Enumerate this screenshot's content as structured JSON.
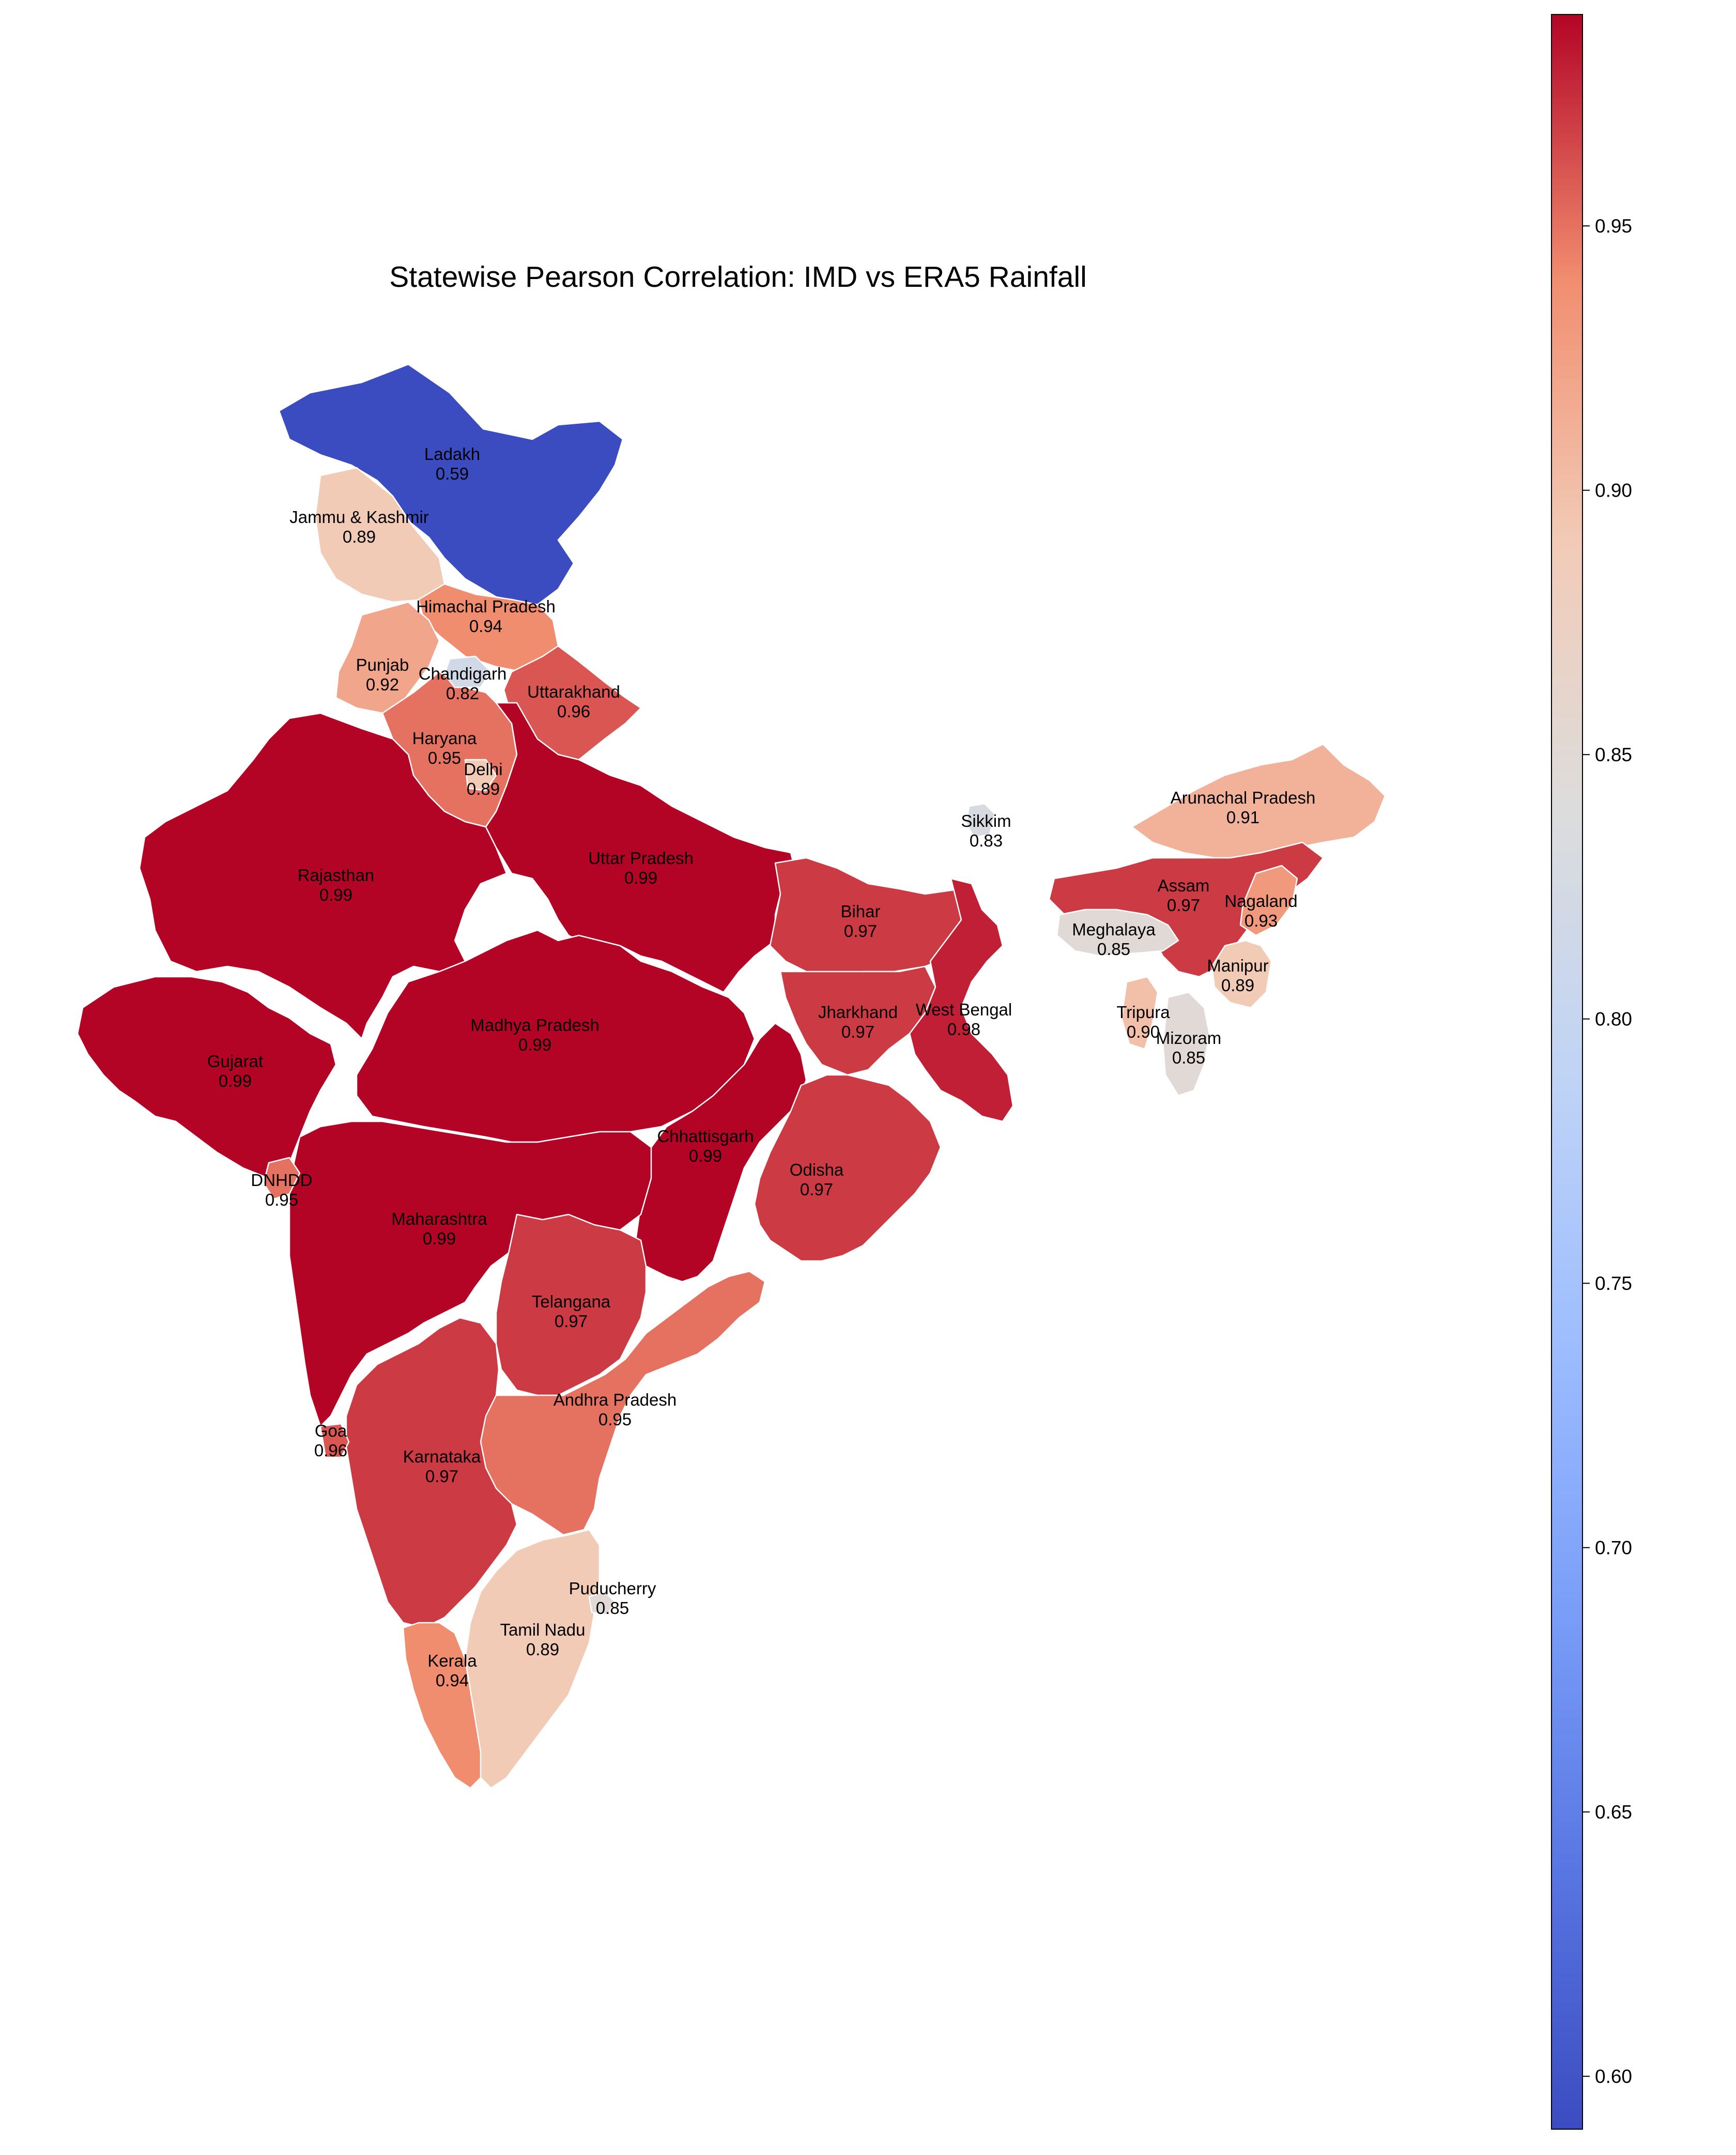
{
  "title": "Statewise Pearson Correlation: IMD vs ERA5 Rainfall",
  "chart_data": {
    "type": "choropleth",
    "title": "Statewise Pearson Correlation: IMD vs ERA5 Rainfall",
    "colormap": "coolwarm",
    "color_range": [
      0.59,
      0.99
    ],
    "colorbar_ticks": [
      "0.60",
      "0.65",
      "0.70",
      "0.75",
      "0.80",
      "0.85",
      "0.90",
      "0.95"
    ],
    "regions": [
      {
        "name": "Ladakh",
        "value": 0.59,
        "label": "0.59"
      },
      {
        "name": "Jammu & Kashmir",
        "value": 0.89,
        "label": "0.89"
      },
      {
        "name": "Himachal Pradesh",
        "value": 0.94,
        "label": "0.94"
      },
      {
        "name": "Punjab",
        "value": 0.92,
        "label": "0.92"
      },
      {
        "name": "Chandigarh",
        "value": 0.82,
        "label": "0.82"
      },
      {
        "name": "Uttarakhand",
        "value": 0.96,
        "label": "0.96"
      },
      {
        "name": "Haryana",
        "value": 0.95,
        "label": "0.95"
      },
      {
        "name": "Delhi",
        "value": 0.89,
        "label": "0.89"
      },
      {
        "name": "Rajasthan",
        "value": 0.99,
        "label": "0.99"
      },
      {
        "name": "Uttar Pradesh",
        "value": 0.99,
        "label": "0.99"
      },
      {
        "name": "Sikkim",
        "value": 0.83,
        "label": "0.83"
      },
      {
        "name": "Arunachal Pradesh",
        "value": 0.91,
        "label": "0.91"
      },
      {
        "name": "Bihar",
        "value": 0.97,
        "label": "0.97"
      },
      {
        "name": "Assam",
        "value": 0.97,
        "label": "0.97"
      },
      {
        "name": "Nagaland",
        "value": 0.93,
        "label": "0.93"
      },
      {
        "name": "Meghalaya",
        "value": 0.85,
        "label": "0.85"
      },
      {
        "name": "Manipur",
        "value": 0.89,
        "label": "0.89"
      },
      {
        "name": "Tripura",
        "value": 0.9,
        "label": "0.90"
      },
      {
        "name": "Mizoram",
        "value": 0.85,
        "label": "0.85"
      },
      {
        "name": "Gujarat",
        "value": 0.99,
        "label": "0.99"
      },
      {
        "name": "Madhya Pradesh",
        "value": 0.99,
        "label": "0.99"
      },
      {
        "name": "Jharkhand",
        "value": 0.97,
        "label": "0.97"
      },
      {
        "name": "West Bengal",
        "value": 0.98,
        "label": "0.98"
      },
      {
        "name": "Chhattisgarh",
        "value": 0.99,
        "label": "0.99"
      },
      {
        "name": "Odisha",
        "value": 0.97,
        "label": "0.97"
      },
      {
        "name": "DNHDD",
        "value": 0.95,
        "label": "0.95"
      },
      {
        "name": "Maharashtra",
        "value": 0.99,
        "label": "0.99"
      },
      {
        "name": "Telangana",
        "value": 0.97,
        "label": "0.97"
      },
      {
        "name": "Andhra Pradesh",
        "value": 0.95,
        "label": "0.95"
      },
      {
        "name": "Goa",
        "value": 0.96,
        "label": "0.96"
      },
      {
        "name": "Karnataka",
        "value": 0.97,
        "label": "0.97"
      },
      {
        "name": "Puducherry",
        "value": 0.85,
        "label": "0.85"
      },
      {
        "name": "Tamil Nadu",
        "value": 0.89,
        "label": "0.89"
      },
      {
        "name": "Kerala",
        "value": 0.94,
        "label": "0.94"
      }
    ]
  }
}
